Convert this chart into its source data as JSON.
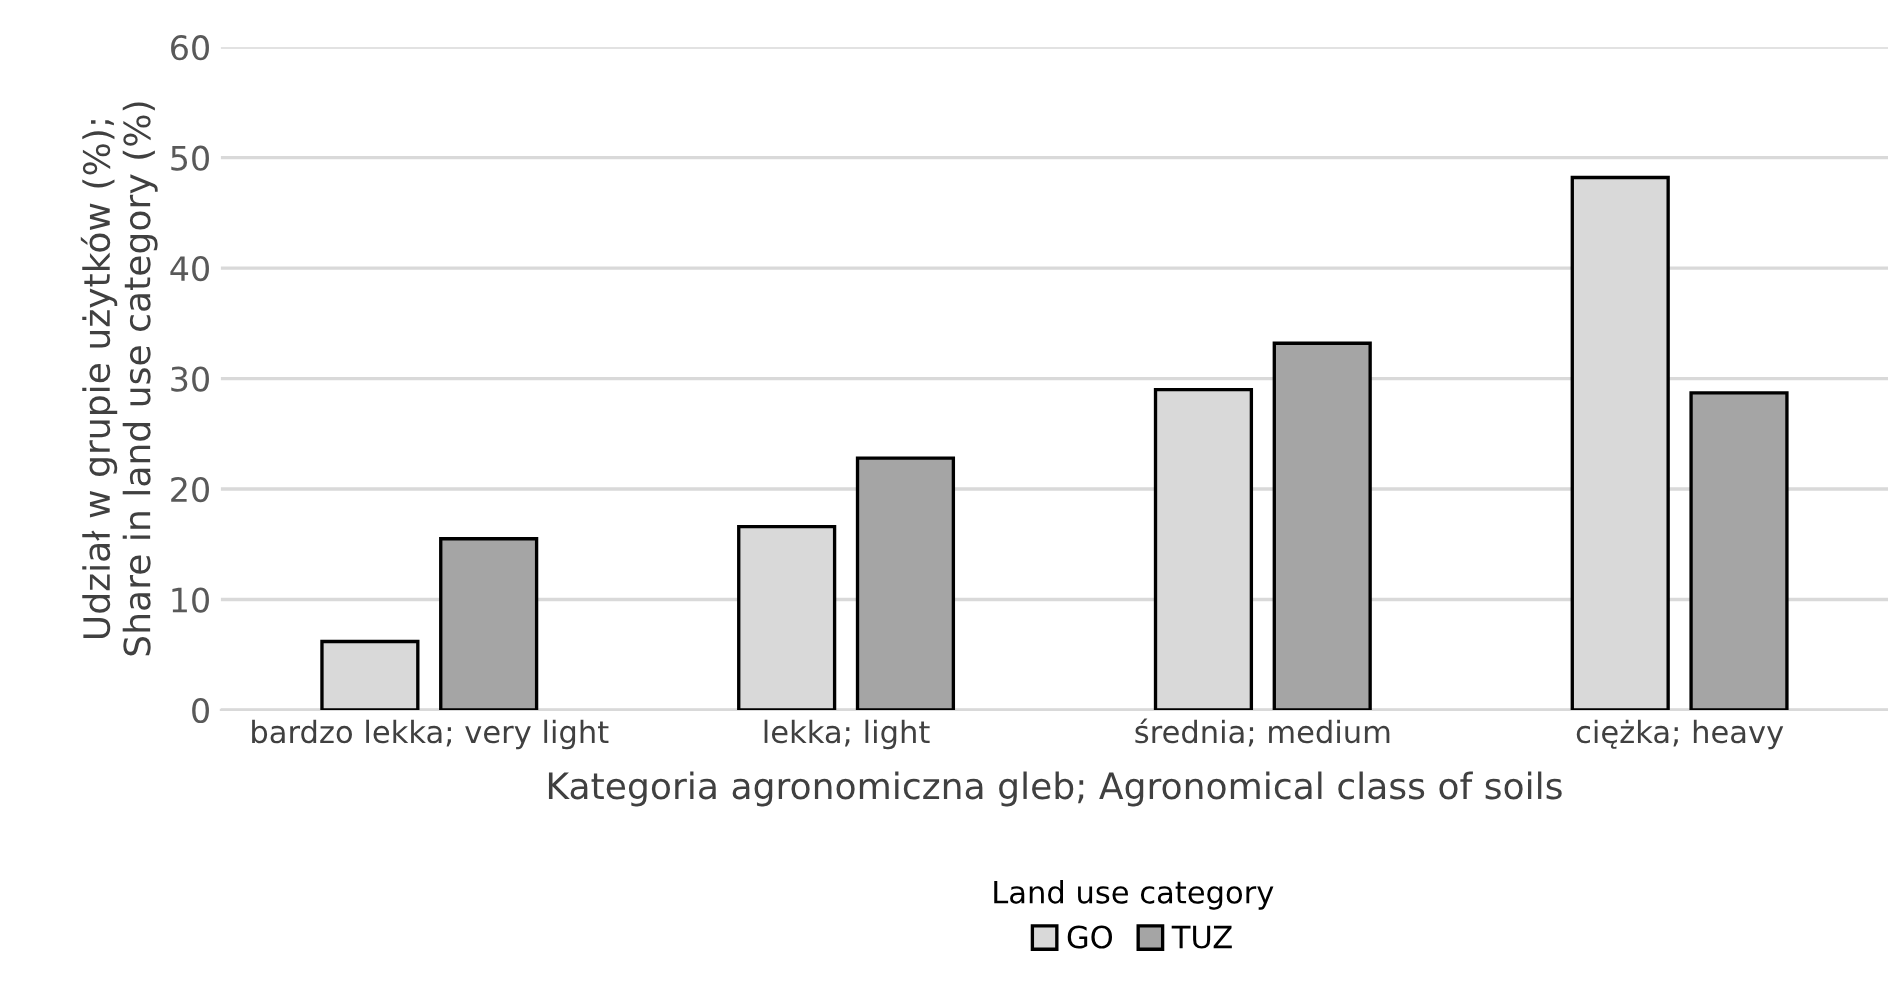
{
  "chart_data": {
    "type": "bar",
    "xlabel": "Kategoria agronomiczna gleb; Agronomical class of soils",
    "ylabel": "Udział w grupie użytków (%);\nShare in land use category (%)",
    "legend_title": "Land use category",
    "categories": [
      "bardzo lekka; very light",
      "lekka; light",
      "średnia; medium",
      "ciężka; heavy"
    ],
    "series": [
      {
        "name": "GO",
        "color": "#d9d9d9",
        "values": [
          6.2,
          16.6,
          29.0,
          48.2
        ]
      },
      {
        "name": "TUZ",
        "color": "#a5a5a5",
        "values": [
          15.5,
          22.8,
          33.2,
          28.7
        ]
      }
    ],
    "ylim": [
      0,
      60
    ],
    "yticks": [
      0,
      10,
      20,
      30,
      40,
      50,
      60
    ],
    "grid": "y",
    "legend": "bottom"
  }
}
